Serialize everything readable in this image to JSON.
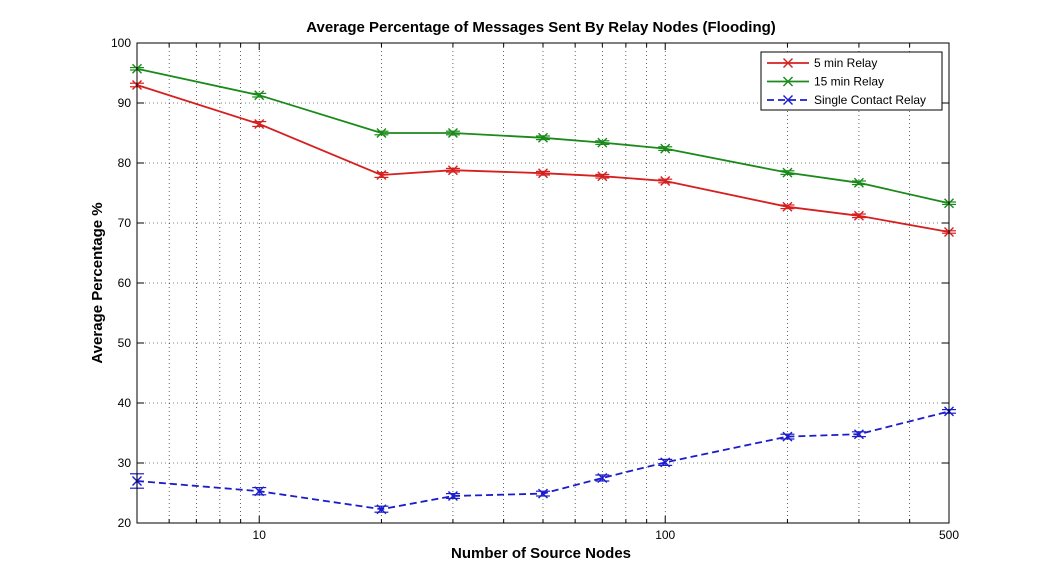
{
  "chart_data": {
    "type": "line",
    "title": "Average Percentage of Messages Sent By Relay Nodes (Flooding)",
    "xlabel": "Number of Source Nodes",
    "ylabel": "Average Percentage %",
    "xscale": "log",
    "xlim": [
      5,
      500
    ],
    "ylim": [
      20,
      100
    ],
    "xtick_labels": [
      "10",
      "100",
      "500"
    ],
    "xticks": [
      10,
      100,
      500
    ],
    "yticks": [
      20,
      30,
      40,
      50,
      60,
      70,
      80,
      90,
      100
    ],
    "grid": true,
    "legend_position": "top-right",
    "x": [
      5,
      10,
      20,
      30,
      50,
      70,
      100,
      200,
      300,
      500
    ],
    "series": [
      {
        "name": "5 min Relay",
        "color": "#d62020",
        "line_style": "solid",
        "marker": "x",
        "values": [
          93,
          86.5,
          78,
          78.8,
          78.3,
          77.8,
          77,
          72.7,
          71.2,
          68.5
        ],
        "error": [
          0.3,
          0.4,
          0.4,
          0.3,
          0.3,
          0.3,
          0.3,
          0.3,
          0.3,
          0.2
        ]
      },
      {
        "name": "15 min Relay",
        "color": "#1a8a1a",
        "line_style": "solid",
        "marker": "x",
        "values": [
          95.7,
          91.3,
          85,
          85,
          84.2,
          83.4,
          82.4,
          78.4,
          76.7,
          73.3
        ],
        "error": [
          0.2,
          0.3,
          0.3,
          0.3,
          0.3,
          0.3,
          0.3,
          0.3,
          0.3,
          0.2
        ]
      },
      {
        "name": "Single Contact Relay",
        "color": "#1c1ccc",
        "line_style": "dashed",
        "marker": "x",
        "values": [
          27,
          25.3,
          22.3,
          24.5,
          24.9,
          27.5,
          30.1,
          34.4,
          34.8,
          38.6
        ],
        "error": [
          1.2,
          0.6,
          0.5,
          0.4,
          0.4,
          0.5,
          0.5,
          0.4,
          0.4,
          0.3
        ]
      }
    ]
  }
}
